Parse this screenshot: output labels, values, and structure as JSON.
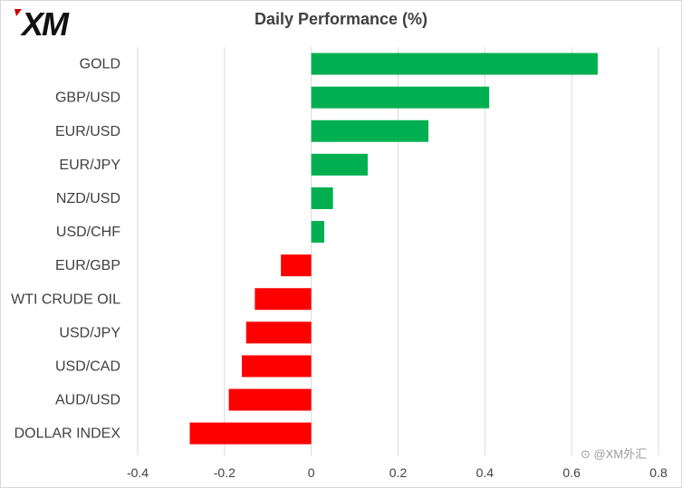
{
  "brand": {
    "logo_text": "XM",
    "logo_color": "#111111",
    "logo_accent": "#cc0000"
  },
  "watermark": "⊙ @XM外汇",
  "colors": {
    "positive": "#00b050",
    "negative": "#ff0000",
    "grid": "#d9d9d9",
    "text": "#404040"
  },
  "chart_data": {
    "type": "bar",
    "orientation": "horizontal",
    "title": "Daily Performance (%)",
    "categories": [
      "GOLD",
      "GBP/USD",
      "EUR/USD",
      "EUR/JPY",
      "NZD/USD",
      "USD/CHF",
      "EUR/GBP",
      "WTI CRUDE OIL",
      "USD/JPY",
      "USD/CAD",
      "AUD/USD",
      "DOLLAR INDEX"
    ],
    "values": [
      0.66,
      0.41,
      0.27,
      0.13,
      0.05,
      0.03,
      -0.07,
      -0.13,
      -0.15,
      -0.16,
      -0.19,
      -0.28
    ],
    "xlim": [
      -0.4,
      0.8
    ],
    "xticks": [
      -0.4,
      -0.2,
      0,
      0.2,
      0.4,
      0.6,
      0.8
    ],
    "xtick_labels": [
      "-0.4",
      "-0.2",
      "0",
      "0.2",
      "0.4",
      "0.6",
      "0.8"
    ],
    "grid": "vertical",
    "legend": "none"
  }
}
